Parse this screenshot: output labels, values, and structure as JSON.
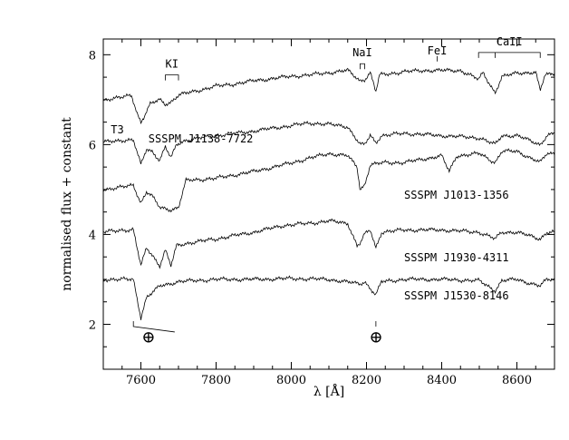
{
  "chart_data": {
    "type": "line",
    "title": "",
    "xlabel": "λ [Å]",
    "ylabel": "normalised flux + constant",
    "xlim": [
      7500,
      8700
    ],
    "ylim": [
      1.0,
      8.35
    ],
    "xticks": [
      7600,
      7800,
      8000,
      8200,
      8400,
      8600
    ],
    "yticks": [
      2,
      4,
      6,
      8
    ],
    "grid": false,
    "series": [
      {
        "name": "T3",
        "offset": 7.0,
        "points": [
          [
            7500,
            7.0
          ],
          [
            7550,
            7.05
          ],
          [
            7575,
            7.1
          ],
          [
            7590,
            6.7
          ],
          [
            7600,
            6.5
          ],
          [
            7610,
            6.65
          ],
          [
            7625,
            6.9
          ],
          [
            7650,
            7.0
          ],
          [
            7665,
            6.9
          ],
          [
            7680,
            6.95
          ],
          [
            7700,
            7.1
          ],
          [
            7750,
            7.2
          ],
          [
            7800,
            7.3
          ],
          [
            7850,
            7.35
          ],
          [
            7900,
            7.42
          ],
          [
            7950,
            7.47
          ],
          [
            8000,
            7.52
          ],
          [
            8050,
            7.55
          ],
          [
            8100,
            7.6
          ],
          [
            8150,
            7.65
          ],
          [
            8183,
            7.42
          ],
          [
            8195,
            7.45
          ],
          [
            8210,
            7.6
          ],
          [
            8225,
            7.18
          ],
          [
            8235,
            7.55
          ],
          [
            8300,
            7.62
          ],
          [
            8350,
            7.65
          ],
          [
            8400,
            7.65
          ],
          [
            8450,
            7.65
          ],
          [
            8498,
            7.45
          ],
          [
            8510,
            7.6
          ],
          [
            8542,
            7.15
          ],
          [
            8560,
            7.5
          ],
          [
            8600,
            7.6
          ],
          [
            8650,
            7.6
          ],
          [
            8662,
            7.2
          ],
          [
            8675,
            7.55
          ],
          [
            8700,
            7.6
          ]
        ]
      },
      {
        "name": "SSSPM J1138-7722",
        "offset": 6.0,
        "points": [
          [
            7500,
            6.05
          ],
          [
            7550,
            6.1
          ],
          [
            7580,
            6.1
          ],
          [
            7600,
            5.55
          ],
          [
            7615,
            5.9
          ],
          [
            7630,
            5.85
          ],
          [
            7650,
            5.65
          ],
          [
            7665,
            5.95
          ],
          [
            7680,
            5.7
          ],
          [
            7695,
            6.0
          ],
          [
            7720,
            6.1
          ],
          [
            7800,
            6.2
          ],
          [
            7900,
            6.3
          ],
          [
            7980,
            6.4
          ],
          [
            8050,
            6.48
          ],
          [
            8100,
            6.45
          ],
          [
            8150,
            6.4
          ],
          [
            8183,
            6.0
          ],
          [
            8195,
            6.0
          ],
          [
            8210,
            6.2
          ],
          [
            8225,
            6.05
          ],
          [
            8240,
            6.2
          ],
          [
            8300,
            6.25
          ],
          [
            8400,
            6.2
          ],
          [
            8500,
            6.15
          ],
          [
            8542,
            6.0
          ],
          [
            8560,
            6.2
          ],
          [
            8600,
            6.2
          ],
          [
            8662,
            6.0
          ],
          [
            8680,
            6.2
          ],
          [
            8700,
            6.25
          ]
        ]
      },
      {
        "name": "SSSPM J1013-1356",
        "offset": 5.0,
        "points": [
          [
            7500,
            5.0
          ],
          [
            7550,
            5.05
          ],
          [
            7580,
            5.1
          ],
          [
            7600,
            4.7
          ],
          [
            7615,
            4.95
          ],
          [
            7630,
            4.85
          ],
          [
            7650,
            4.6
          ],
          [
            7680,
            4.55
          ],
          [
            7700,
            4.6
          ],
          [
            7720,
            5.2
          ],
          [
            7800,
            5.25
          ],
          [
            7900,
            5.4
          ],
          [
            7980,
            5.55
          ],
          [
            8050,
            5.7
          ],
          [
            8100,
            5.8
          ],
          [
            8150,
            5.75
          ],
          [
            8175,
            5.5
          ],
          [
            8183,
            5.0
          ],
          [
            8195,
            5.1
          ],
          [
            8210,
            5.55
          ],
          [
            8250,
            5.6
          ],
          [
            8300,
            5.6
          ],
          [
            8400,
            5.75
          ],
          [
            8420,
            5.4
          ],
          [
            8440,
            5.75
          ],
          [
            8500,
            5.8
          ],
          [
            8542,
            5.6
          ],
          [
            8560,
            5.85
          ],
          [
            8600,
            5.85
          ],
          [
            8662,
            5.6
          ],
          [
            8680,
            5.8
          ],
          [
            8700,
            5.8
          ]
        ]
      },
      {
        "name": "SSSPM J1930-4311",
        "offset": 4.0,
        "points": [
          [
            7500,
            4.05
          ],
          [
            7550,
            4.1
          ],
          [
            7580,
            4.1
          ],
          [
            7600,
            3.3
          ],
          [
            7615,
            3.7
          ],
          [
            7630,
            3.55
          ],
          [
            7650,
            3.3
          ],
          [
            7665,
            3.65
          ],
          [
            7680,
            3.3
          ],
          [
            7695,
            3.75
          ],
          [
            7720,
            3.8
          ],
          [
            7800,
            3.9
          ],
          [
            7900,
            4.05
          ],
          [
            7980,
            4.2
          ],
          [
            8050,
            4.25
          ],
          [
            8100,
            4.3
          ],
          [
            8150,
            4.25
          ],
          [
            8175,
            3.75
          ],
          [
            8183,
            3.8
          ],
          [
            8195,
            4.0
          ],
          [
            8210,
            4.1
          ],
          [
            8225,
            3.7
          ],
          [
            8240,
            4.05
          ],
          [
            8300,
            4.1
          ],
          [
            8400,
            4.1
          ],
          [
            8500,
            4.05
          ],
          [
            8542,
            3.9
          ],
          [
            8560,
            4.05
          ],
          [
            8600,
            4.05
          ],
          [
            8662,
            3.9
          ],
          [
            8680,
            4.05
          ],
          [
            8700,
            4.05
          ]
        ]
      },
      {
        "name": "SSSPM J1530-8146",
        "offset": 3.0,
        "points": [
          [
            7500,
            3.0
          ],
          [
            7550,
            3.0
          ],
          [
            7580,
            3.0
          ],
          [
            7600,
            2.15
          ],
          [
            7615,
            2.6
          ],
          [
            7630,
            2.7
          ],
          [
            7650,
            2.85
          ],
          [
            7700,
            2.95
          ],
          [
            7800,
            3.0
          ],
          [
            7900,
            3.0
          ],
          [
            8000,
            3.02
          ],
          [
            8100,
            3.0
          ],
          [
            8183,
            2.9
          ],
          [
            8195,
            2.95
          ],
          [
            8225,
            2.65
          ],
          [
            8240,
            2.95
          ],
          [
            8300,
            3.0
          ],
          [
            8400,
            3.0
          ],
          [
            8500,
            2.97
          ],
          [
            8542,
            2.75
          ],
          [
            8560,
            2.97
          ],
          [
            8600,
            3.0
          ],
          [
            8662,
            2.85
          ],
          [
            8680,
            3.0
          ],
          [
            8700,
            3.0
          ]
        ]
      }
    ],
    "line_annotations": [
      {
        "label": "KI",
        "x_start": 7665,
        "x_end": 7700
      },
      {
        "label": "NaI",
        "x_start": 8183,
        "x_end": 8195
      },
      {
        "label": "FeI",
        "x_start": 8388,
        "x_end": 8388
      },
      {
        "label": "CaII",
        "x_start": 8498,
        "x_end": 8662
      }
    ],
    "telluric_symbol": "⊕",
    "telluric_bands": [
      7620,
      8225
    ]
  }
}
